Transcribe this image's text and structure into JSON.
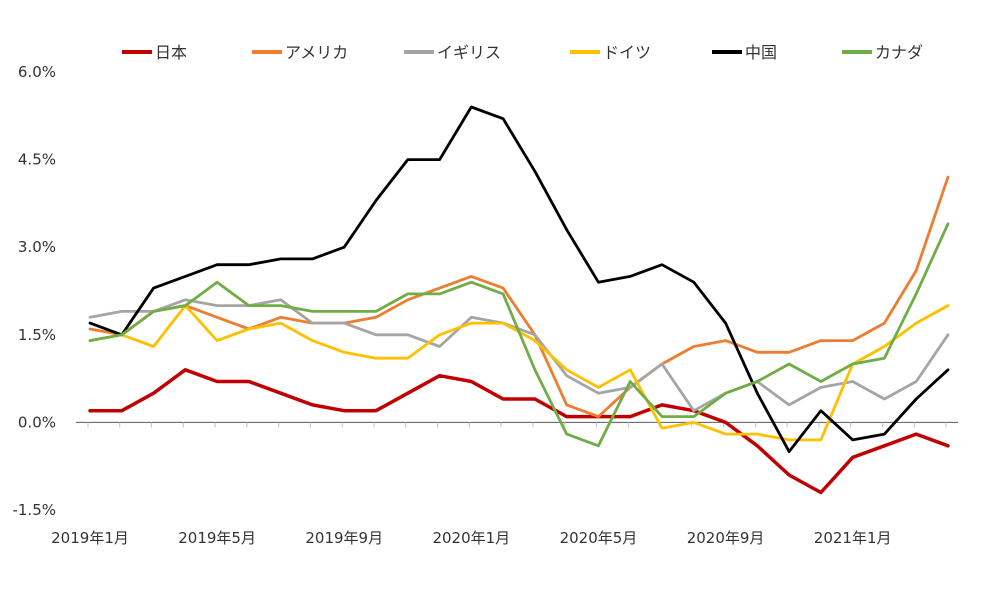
{
  "chart_data": {
    "type": "line",
    "title": "",
    "xlabel": "",
    "ylabel": "",
    "ylim": [
      -1.5,
      6.0
    ],
    "yticks": [
      -1.5,
      0.0,
      1.5,
      3.0,
      4.5,
      6.0
    ],
    "ytick_labels": [
      "-1.5%",
      "0.0%",
      "1.5%",
      "3.0%",
      "4.5%",
      "6.0%"
    ],
    "grid": false,
    "legend_position": "top",
    "x": [
      "2019-01",
      "2019-02",
      "2019-03",
      "2019-04",
      "2019-05",
      "2019-06",
      "2019-07",
      "2019-08",
      "2019-09",
      "2019-10",
      "2019-11",
      "2019-12",
      "2020-01",
      "2020-02",
      "2020-03",
      "2020-04",
      "2020-05",
      "2020-06",
      "2020-07",
      "2020-08",
      "2020-09",
      "2020-10",
      "2020-11",
      "2020-12",
      "2021-01",
      "2021-02",
      "2021-03",
      "2021-04"
    ],
    "xtick_labels": [
      {
        "index": 0,
        "label": "2019年1月"
      },
      {
        "index": 4,
        "label": "2019年5月"
      },
      {
        "index": 8,
        "label": "2019年9月"
      },
      {
        "index": 12,
        "label": "2020年1月"
      },
      {
        "index": 16,
        "label": "2020年5月"
      },
      {
        "index": 20,
        "label": "2020年9月"
      },
      {
        "index": 24,
        "label": "2021年1月"
      }
    ],
    "series": [
      {
        "name": "日本",
        "color": "#c00000",
        "values": [
          0.2,
          0.2,
          0.5,
          0.9,
          0.7,
          0.7,
          0.5,
          0.3,
          0.2,
          0.2,
          0.5,
          0.8,
          0.7,
          0.4,
          0.4,
          0.1,
          0.1,
          0.1,
          0.3,
          0.2,
          0.0,
          -0.4,
          -0.9,
          -1.2,
          -0.6,
          -0.4,
          -0.2,
          -0.4
        ]
      },
      {
        "name": "アメリカ",
        "color": "#ed7d31",
        "values": [
          1.6,
          1.5,
          1.9,
          2.0,
          1.8,
          1.6,
          1.8,
          1.7,
          1.7,
          1.8,
          2.1,
          2.3,
          2.5,
          2.3,
          1.5,
          0.3,
          0.1,
          0.6,
          1.0,
          1.3,
          1.4,
          1.2,
          1.2,
          1.4,
          1.4,
          1.7,
          2.6,
          4.2
        ]
      },
      {
        "name": "イギリス",
        "color": "#a5a5a5",
        "values": [
          1.8,
          1.9,
          1.9,
          2.1,
          2.0,
          2.0,
          2.1,
          1.7,
          1.7,
          1.5,
          1.5,
          1.3,
          1.8,
          1.7,
          1.5,
          0.8,
          0.5,
          0.6,
          1.0,
          0.2,
          0.5,
          0.7,
          0.3,
          0.6,
          0.7,
          0.4,
          0.7,
          1.5
        ]
      },
      {
        "name": "ドイツ",
        "color": "#ffc000",
        "values": [
          1.4,
          1.5,
          1.3,
          2.0,
          1.4,
          1.6,
          1.7,
          1.4,
          1.2,
          1.1,
          1.1,
          1.5,
          1.7,
          1.7,
          1.4,
          0.9,
          0.6,
          0.9,
          -0.1,
          0.0,
          -0.2,
          -0.2,
          -0.3,
          -0.3,
          1.0,
          1.3,
          1.7,
          2.0
        ]
      },
      {
        "name": "中国",
        "color": "#000000",
        "values": [
          1.7,
          1.5,
          2.3,
          2.5,
          2.7,
          2.7,
          2.8,
          2.8,
          3.0,
          3.8,
          4.5,
          4.5,
          5.4,
          5.2,
          4.3,
          3.3,
          2.4,
          2.5,
          2.7,
          2.4,
          1.7,
          0.5,
          -0.5,
          0.2,
          -0.3,
          -0.2,
          0.4,
          0.9
        ]
      },
      {
        "name": "カナダ",
        "color": "#70ad47",
        "values": [
          1.4,
          1.5,
          1.9,
          2.0,
          2.4,
          2.0,
          2.0,
          1.9,
          1.9,
          1.9,
          2.2,
          2.2,
          2.4,
          2.2,
          0.9,
          -0.2,
          -0.4,
          0.7,
          0.1,
          0.1,
          0.5,
          0.7,
          1.0,
          0.7,
          1.0,
          1.1,
          2.2,
          3.4
        ]
      }
    ]
  }
}
